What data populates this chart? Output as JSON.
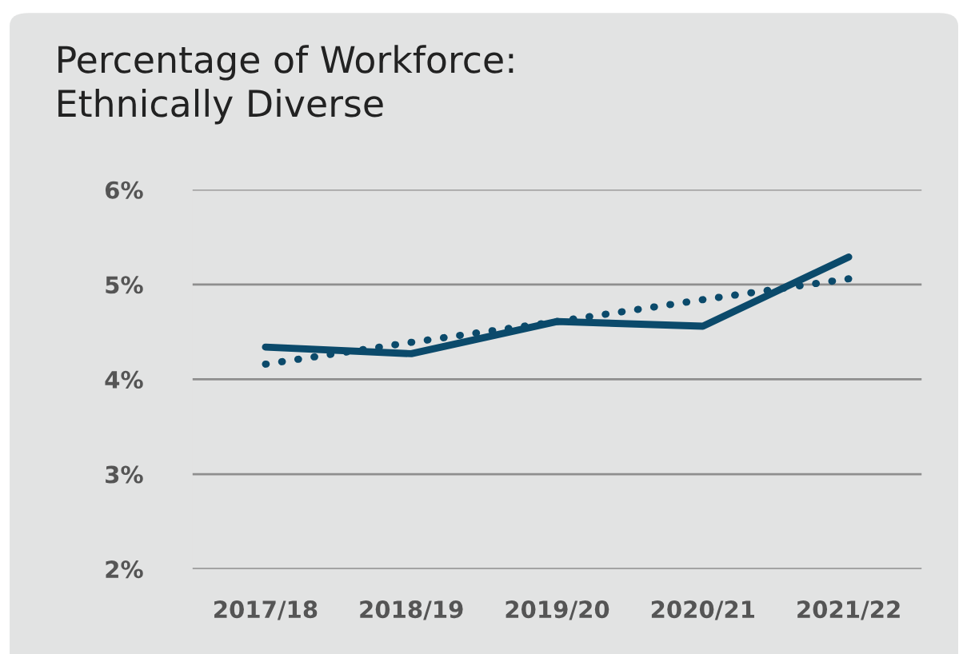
{
  "chart_data": {
    "type": "line",
    "title": "Percentage of Workforce:\nEthnically Diverse",
    "categories": [
      "2017/18",
      "2018/19",
      "2019/20",
      "2020/21",
      "2021/22"
    ],
    "series": [
      {
        "color": "#0b4a6b",
        "values": [
          4.34,
          4.27,
          4.61,
          4.56,
          5.29
        ],
        "line_style": "solid"
      },
      {
        "type": "line",
        "color": "#0b4a6b",
        "values": [
          4.16,
          4.39,
          4.61,
          4.84,
          5.06
        ],
        "line_style": "dotted"
      }
    ],
    "ylim": [
      2,
      6
    ],
    "yticks": [
      {
        "value": 2,
        "label": "2%"
      },
      {
        "value": 3,
        "label": "3%"
      },
      {
        "value": 4,
        "label": "4%"
      },
      {
        "value": 5,
        "label": "5%"
      },
      {
        "value": 6,
        "label": "6%"
      }
    ],
    "grid": "y",
    "marker": "none"
  }
}
